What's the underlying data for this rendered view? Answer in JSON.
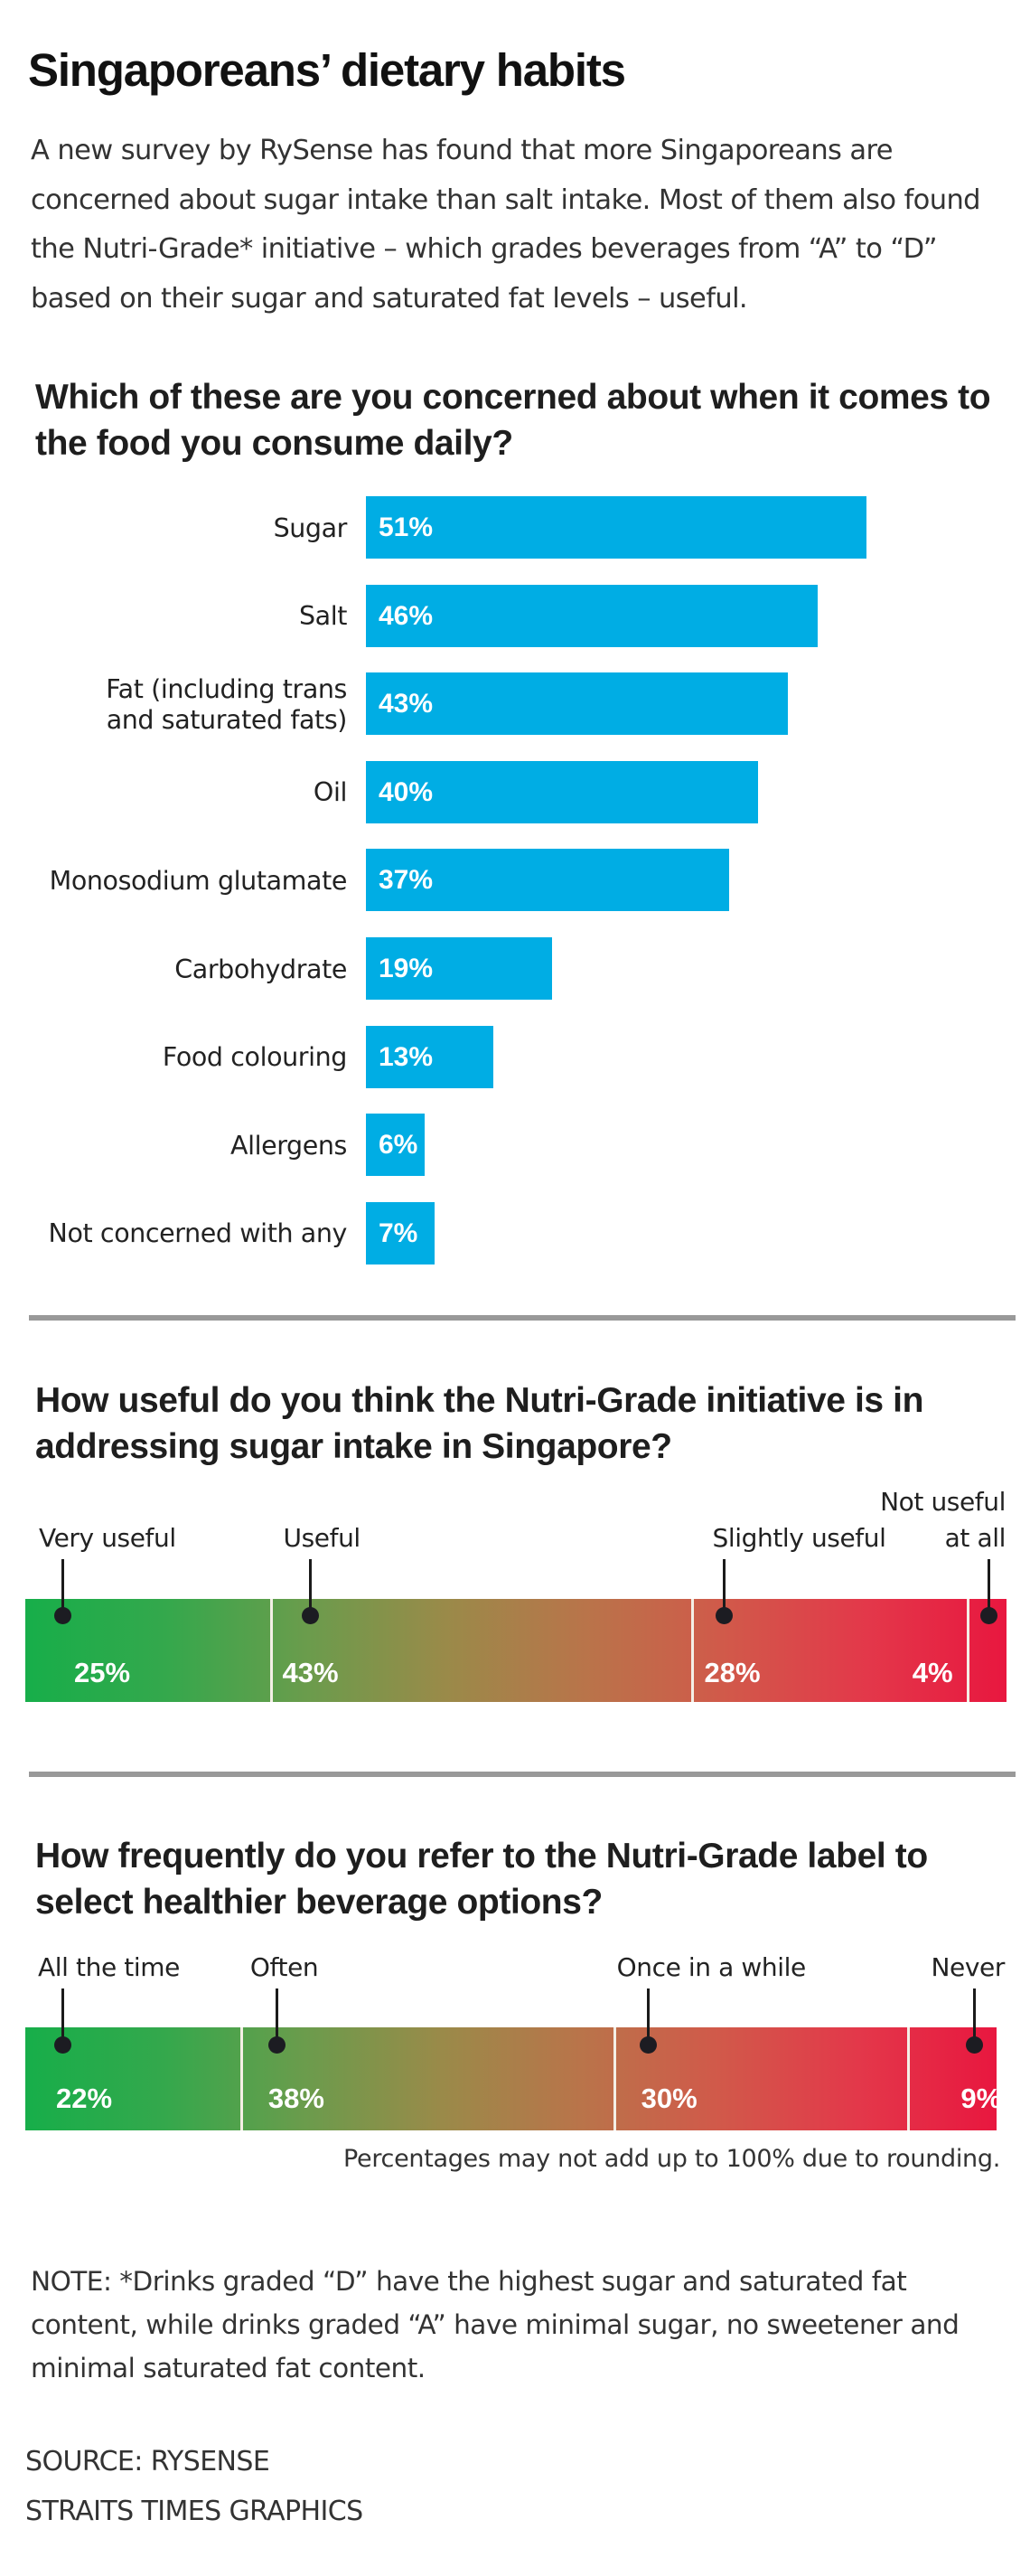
{
  "title": "Singaporeans’ dietary habits",
  "intro": "A new survey by RySense has found that more Singaporeans are concerned about sugar intake than salt intake. Most of them also found the Nutri-Grade* initiative – which grades beverages from “A” to “D” based on their sugar and saturated fat levels – useful.",
  "colors": {
    "bar_blue": "#00ade4",
    "gradient": [
      "#17ae4a",
      "#34a84c",
      "#6a9c4c",
      "#9a8a49",
      "#b9744a",
      "#d1594a",
      "#e3384a",
      "#e8173f"
    ],
    "divider": "#999999",
    "pointer": "#1c1c22"
  },
  "chart_data": [
    {
      "type": "bar",
      "orientation": "horizontal",
      "title": "Which of these are you concerned about when it comes to the food you consume daily?",
      "categories": [
        "Sugar",
        "Salt",
        "Fat (including trans and saturated fats)",
        "Oil",
        "Monosodium glutamate",
        "Carbohydrate",
        "Food colouring",
        "Allergens",
        "Not concerned with any"
      ],
      "category_lines": [
        [
          "Sugar"
        ],
        [
          "Salt"
        ],
        [
          "Fat (including trans",
          "and saturated fats)"
        ],
        [
          "Oil"
        ],
        [
          "Monosodium glutamate"
        ],
        [
          "Carbohydrate"
        ],
        [
          "Food colouring"
        ],
        [
          "Allergens"
        ],
        [
          "Not concerned with any"
        ]
      ],
      "values": [
        51,
        46,
        43,
        40,
        37,
        19,
        13,
        6,
        7
      ],
      "value_labels": [
        "51%",
        "46%",
        "43%",
        "40%",
        "37%",
        "19%",
        "13%",
        "6%",
        "7%"
      ],
      "unit": "%",
      "xlim": [
        0,
        100
      ],
      "grid": false
    },
    {
      "type": "bar",
      "orientation": "stacked-horizontal",
      "title": "How useful do you think the Nutri-Grade initiative is in addressing sugar intake in Singapore?",
      "categories": [
        "Very useful",
        "Useful",
        "Slightly useful",
        "Not useful at all"
      ],
      "category_lines": [
        [
          "Very useful"
        ],
        [
          "Useful"
        ],
        [
          "Slightly useful"
        ],
        [
          "Not useful",
          "at all"
        ]
      ],
      "values": [
        25,
        43,
        28,
        4
      ],
      "value_labels": [
        "25%",
        "43%",
        "28%",
        "4%"
      ],
      "unit": "%"
    },
    {
      "type": "bar",
      "orientation": "stacked-horizontal",
      "title": "How frequently do you refer to the Nutri-Grade label to select healthier beverage options?",
      "categories": [
        "All the time",
        "Often",
        "Once in a while",
        "Never"
      ],
      "category_lines": [
        [
          "All the time"
        ],
        [
          "Often"
        ],
        [
          "Once in a while"
        ],
        [
          "Never"
        ]
      ],
      "values": [
        22,
        38,
        30,
        9
      ],
      "value_labels": [
        "22%",
        "38%",
        "30%",
        "9%"
      ],
      "unit": "%",
      "annotation": "Percentages may not add up to 100% due to rounding."
    }
  ],
  "note": "NOTE: *Drinks graded “D” have the highest sugar and saturated fat content, while drinks graded “A” have minimal sugar, no sweetener and minimal saturated fat content.",
  "source_lines": [
    "SOURCE: RYSENSE",
    "STRAITS TIMES GRAPHICS"
  ]
}
